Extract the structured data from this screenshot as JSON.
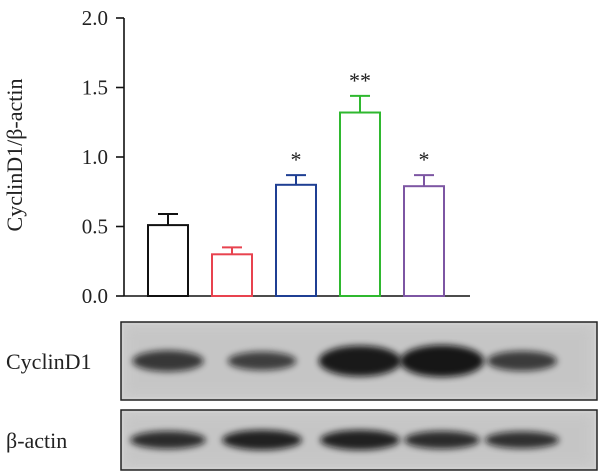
{
  "chart_data": {
    "type": "bar",
    "ylabel": "CyclinD1/β-actin",
    "ylim": [
      0,
      2.0
    ],
    "yticks": [
      "0.0",
      "0.5",
      "1.0",
      "1.5",
      "2.0"
    ],
    "tick_values": [
      0,
      0.5,
      1.0,
      1.5,
      2.0
    ],
    "grid": false,
    "bars": [
      {
        "value": 0.51,
        "error": 0.08,
        "color": "#111111",
        "annotation": ""
      },
      {
        "value": 0.3,
        "error": 0.05,
        "color": "#e8434f",
        "annotation": ""
      },
      {
        "value": 0.8,
        "error": 0.07,
        "color": "#1f3f93",
        "annotation": "*"
      },
      {
        "value": 1.32,
        "error": 0.12,
        "color": "#2fb82f",
        "annotation": "**"
      },
      {
        "value": 0.79,
        "error": 0.08,
        "color": "#7d56a3",
        "annotation": "*"
      }
    ]
  },
  "blots": [
    {
      "label": "CyclinD1",
      "band_intensity": [
        0.55,
        0.45,
        0.95,
        1.0,
        0.5
      ]
    },
    {
      "label": "β-actin",
      "band_intensity": [
        0.7,
        0.85,
        0.85,
        0.7,
        0.65
      ]
    }
  ]
}
